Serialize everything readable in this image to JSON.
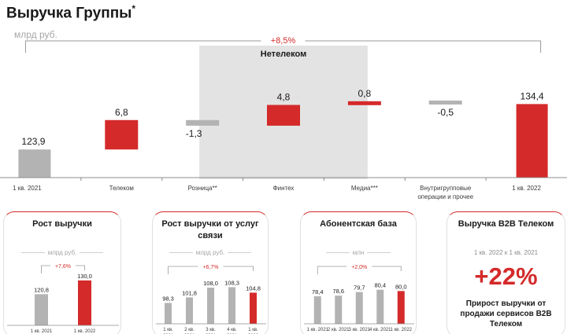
{
  "header": {
    "title": "Выручка Группы",
    "title_mark": "*",
    "unit": "млрд руб."
  },
  "colors": {
    "red": "#d42a2a",
    "gray": "#b3b3b3",
    "shade": "#e3e3e3"
  },
  "chart_data": [
    {
      "type": "bar",
      "subtype": "waterfall",
      "ylabel": "млрд руб.",
      "categories": [
        "1 кв. 2021",
        "Телеком",
        "Розница**",
        "Финтех",
        "Медиа***",
        "Внутригрупповые операции и прочее",
        "1 кв. 2022"
      ],
      "values": [
        123.9,
        6.8,
        -1.3,
        4.8,
        0.8,
        -0.5,
        134.4
      ],
      "value_labels": [
        "123,9",
        "6,8",
        "-1,3",
        "4,8",
        "0,8",
        "-0,5",
        "134,4"
      ],
      "highlight_group": {
        "label": "Нетелеком",
        "categories": [
          "Розница**",
          "Финтех",
          "Медиа***"
        ]
      },
      "total_change_label": "+8,5%"
    },
    {
      "type": "bar",
      "title": "Рост выручки",
      "ylabel": "млрд руб.",
      "categories": [
        "1 кв. 2021",
        "1 кв. 2022"
      ],
      "values": [
        120.8,
        130.0
      ],
      "value_labels": [
        "120,8",
        "130,0"
      ],
      "change_label": "+7,6%"
    },
    {
      "type": "bar",
      "title": "Рост выручки от услуг связи",
      "ylabel": "млрд руб.",
      "categories": [
        "1 кв. 2021",
        "2 кв. 2021",
        "3 кв. 2021",
        "4 кв. 2021",
        "1 кв. 2022"
      ],
      "values": [
        98.3,
        101.8,
        108.0,
        108.3,
        104.8
      ],
      "value_labels": [
        "98,3",
        "101,8",
        "108,0",
        "108,3",
        "104,8"
      ],
      "change_label": "+6,7%"
    },
    {
      "type": "bar",
      "title": "Абонентская база",
      "ylabel": "млн",
      "categories": [
        "1 кв. 2021",
        "2 кв. 2021",
        "3 кв. 2021",
        "4 кв. 2021",
        "1 кв. 2022"
      ],
      "values": [
        78.4,
        78.6,
        79.7,
        80.4,
        80.0
      ],
      "value_labels": [
        "78,4",
        "78,6",
        "79,7",
        "80,4",
        "80,0"
      ],
      "change_label": "+2,0%"
    }
  ],
  "cards": {
    "revenue": {
      "title": "Рост выручки",
      "unit": "млрд руб."
    },
    "telecom": {
      "title": "Рост выручки от услуг связи",
      "unit": "млрд руб."
    },
    "subscribers": {
      "title": "Абонентская база",
      "unit": "млн"
    },
    "b2b": {
      "title": "Выручка B2B Телеком",
      "subtitle": "1 кв. 2022 к 1 кв. 2021",
      "value": "+22%",
      "description": "Прирост выручки от продажи сервисов B2B Телеком"
    }
  }
}
